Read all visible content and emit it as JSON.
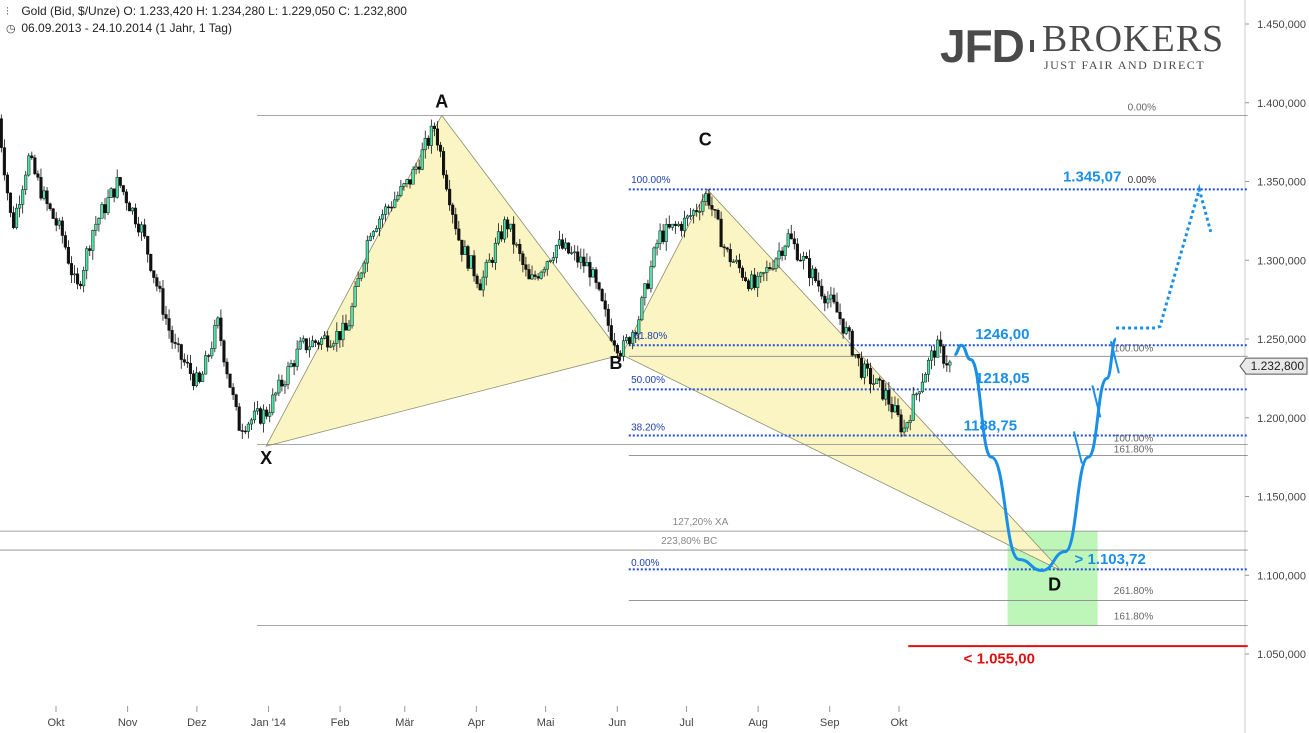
{
  "header": {
    "instrument_line": "Gold (Bid, $/Unze)  O: 1.233,420  H: 1.234,280  L: 1.229,050  C: 1.232,800",
    "range_line": "06.09.2013 - 24.10.2014 (1 Jahr, 1 Tag)"
  },
  "logo": {
    "jfd": "JFD",
    "brokers": "BROKERS",
    "slogan": "JUST FAIR AND DIRECT"
  },
  "chart_data": {
    "type": "candlestick",
    "instrument": "Gold (Bid, $/Unze)",
    "open": 1233.42,
    "high": 1234.28,
    "low": 1229.05,
    "close": 1232.8,
    "period": "06.09.2013 - 24.10.2014 (1 Jahr, 1 Tag)",
    "ylim": [
      1050,
      1450
    ],
    "y_ticks": [
      {
        "v": 1450,
        "label": "1.450,000"
      },
      {
        "v": 1400,
        "label": "1.400,000"
      },
      {
        "v": 1350,
        "label": "1.350,000"
      },
      {
        "v": 1300,
        "label": "1.300,000"
      },
      {
        "v": 1250,
        "label": "1.250,000"
      },
      {
        "v": 1200,
        "label": "1.200,000"
      },
      {
        "v": 1150,
        "label": "1.150,000"
      },
      {
        "v": 1100,
        "label": "1.100,000"
      },
      {
        "v": 1050,
        "label": "1.050,000"
      }
    ],
    "x_ticks": [
      {
        "date": "2013-10-01",
        "label": "Okt"
      },
      {
        "date": "2013-11-01",
        "label": "Nov"
      },
      {
        "date": "2013-12-01",
        "label": "Dez"
      },
      {
        "date": "2014-01-01",
        "label": "Jan '14"
      },
      {
        "date": "2014-02-01",
        "label": "Feb"
      },
      {
        "date": "2014-03-01",
        "label": "Mär"
      },
      {
        "date": "2014-04-01",
        "label": "Apr"
      },
      {
        "date": "2014-05-01",
        "label": "Mai"
      },
      {
        "date": "2014-06-01",
        "label": "Jun"
      },
      {
        "date": "2014-07-01",
        "label": "Jul"
      },
      {
        "date": "2014-08-01",
        "label": "Aug"
      },
      {
        "date": "2014-09-01",
        "label": "Sep"
      },
      {
        "date": "2014-10-01",
        "label": "Okt"
      }
    ],
    "last_price_label": "1.232,800",
    "last_price": 1232.8,
    "price_path": [
      {
        "date": "2013-09-06",
        "v": 1390
      },
      {
        "date": "2013-09-12",
        "v": 1320
      },
      {
        "date": "2013-09-19",
        "v": 1365
      },
      {
        "date": "2013-09-27",
        "v": 1335
      },
      {
        "date": "2013-10-04",
        "v": 1315
      },
      {
        "date": "2013-10-10",
        "v": 1280
      },
      {
        "date": "2013-10-17",
        "v": 1320
      },
      {
        "date": "2013-10-28",
        "v": 1350
      },
      {
        "date": "2013-11-07",
        "v": 1320
      },
      {
        "date": "2013-11-21",
        "v": 1245
      },
      {
        "date": "2013-12-02",
        "v": 1220
      },
      {
        "date": "2013-12-10",
        "v": 1260
      },
      {
        "date": "2013-12-19",
        "v": 1195
      },
      {
        "date": "2013-12-31",
        "v": 1203
      },
      {
        "date": "2014-01-15",
        "v": 1245
      },
      {
        "date": "2014-02-04",
        "v": 1255
      },
      {
        "date": "2014-02-14",
        "v": 1320
      },
      {
        "date": "2014-03-03",
        "v": 1350
      },
      {
        "date": "2014-03-14",
        "v": 1385
      },
      {
        "date": "2014-03-25",
        "v": 1310
      },
      {
        "date": "2014-04-03",
        "v": 1285
      },
      {
        "date": "2014-04-14",
        "v": 1325
      },
      {
        "date": "2014-04-24",
        "v": 1285
      },
      {
        "date": "2014-05-06",
        "v": 1310
      },
      {
        "date": "2014-05-20",
        "v": 1295
      },
      {
        "date": "2014-05-29",
        "v": 1255
      },
      {
        "date": "2014-06-03",
        "v": 1242
      },
      {
        "date": "2014-06-10",
        "v": 1262
      },
      {
        "date": "2014-06-19",
        "v": 1315
      },
      {
        "date": "2014-07-01",
        "v": 1325
      },
      {
        "date": "2014-07-10",
        "v": 1342
      },
      {
        "date": "2014-07-18",
        "v": 1305
      },
      {
        "date": "2014-07-31",
        "v": 1282
      },
      {
        "date": "2014-08-14",
        "v": 1315
      },
      {
        "date": "2014-08-27",
        "v": 1285
      },
      {
        "date": "2014-09-05",
        "v": 1265
      },
      {
        "date": "2014-09-15",
        "v": 1230
      },
      {
        "date": "2014-09-25",
        "v": 1215
      },
      {
        "date": "2014-10-03",
        "v": 1192
      },
      {
        "date": "2014-10-10",
        "v": 1222
      },
      {
        "date": "2014-10-17",
        "v": 1245
      },
      {
        "date": "2014-10-24",
        "v": 1232
      }
    ],
    "pattern": {
      "points": [
        {
          "label": "X",
          "date": "2013-12-31",
          "v": 1182
        },
        {
          "label": "A",
          "date": "2014-03-17",
          "v": 1392
        },
        {
          "label": "B",
          "date": "2014-06-03",
          "v": 1240
        },
        {
          "label": "C",
          "date": "2014-07-10",
          "v": 1345
        },
        {
          "label": "D",
          "date": "2014-12-10",
          "v": 1103
        }
      ],
      "fill_color": "#fbf5c3"
    },
    "levels": [
      {
        "v": 1392,
        "x_from": "2013-12-27",
        "x_to": "2015-03-01",
        "style": "solid",
        "color": "#888888"
      },
      {
        "v": 1345,
        "x_from": "2014-06-06",
        "x_to": "2015-03-01",
        "style": "dotted",
        "color": "#1d4fd8"
      },
      {
        "v": 1246,
        "x_from": "2014-06-06",
        "x_to": "2015-03-01",
        "style": "dotted",
        "color": "#1d4fd8"
      },
      {
        "v": 1239,
        "x_from": "2014-06-06",
        "x_to": "2015-03-01",
        "style": "solid",
        "color": "#888888"
      },
      {
        "v": 1218.05,
        "x_from": "2014-06-06",
        "x_to": "2015-03-01",
        "style": "dotted",
        "color": "#1d4fd8"
      },
      {
        "v": 1188.75,
        "x_from": "2014-06-06",
        "x_to": "2015-03-01",
        "style": "dotted",
        "color": "#1d4fd8"
      },
      {
        "v": 1183,
        "x_from": "2013-12-27",
        "x_to": "2015-03-01",
        "style": "solid",
        "color": "#888888"
      },
      {
        "v": 1176,
        "x_from": "2014-06-06",
        "x_to": "2015-03-01",
        "style": "solid",
        "color": "#888888"
      },
      {
        "v": 1128,
        "x_from": "2013-09-06",
        "x_to": "2015-03-01",
        "style": "solid",
        "color": "#888888"
      },
      {
        "v": 1116,
        "x_from": "2013-09-06",
        "x_to": "2015-03-01",
        "style": "solid",
        "color": "#888888"
      },
      {
        "v": 1103.72,
        "x_from": "2014-06-06",
        "x_to": "2015-03-01",
        "style": "dotted",
        "color": "#1d4fd8"
      },
      {
        "v": 1084,
        "x_from": "2014-06-06",
        "x_to": "2015-03-01",
        "style": "solid",
        "color": "#888888"
      },
      {
        "v": 1068,
        "x_from": "2013-12-27",
        "x_to": "2015-03-01",
        "style": "solid",
        "color": "#888888"
      },
      {
        "v": 1055,
        "x_from": "2014-10-05",
        "x_to": "2015-03-01",
        "style": "solid",
        "color": "#e01010"
      }
    ],
    "fib_labels": [
      {
        "text": "0.00%",
        "date": "2015-01-08",
        "v": 1395,
        "color": "#666666"
      },
      {
        "text": "100.00%",
        "date": "2014-06-07",
        "v": 1349,
        "color": "#1d3fb0"
      },
      {
        "text": "0.00%",
        "date": "2015-01-08",
        "v": 1349,
        "color": "#333333"
      },
      {
        "text": "61.80%",
        "date": "2014-06-08",
        "v": 1250,
        "color": "#1d3fb0"
      },
      {
        "text": "100.00%",
        "date": "2015-01-02",
        "v": 1242,
        "color": "#666666"
      },
      {
        "text": "50.00%",
        "date": "2014-06-07",
        "v": 1222,
        "color": "#1d3fb0"
      },
      {
        "text": "38.20%",
        "date": "2014-06-07",
        "v": 1192,
        "color": "#1d3fb0"
      },
      {
        "text": "100.00%",
        "date": "2015-01-02",
        "v": 1185,
        "color": "#666666"
      },
      {
        "text": "161.80%",
        "date": "2015-01-02",
        "v": 1178,
        "color": "#666666"
      },
      {
        "text": "127,20% XA",
        "date": "2014-06-25",
        "v": 1132,
        "color": "#888888"
      },
      {
        "text": "223,80% BC",
        "date": "2014-06-20",
        "v": 1120,
        "color": "#888888"
      },
      {
        "text": "0.00%",
        "date": "2014-06-07",
        "v": 1106,
        "color": "#1d3fb0"
      },
      {
        "text": "261.80%",
        "date": "2015-01-02",
        "v": 1088,
        "color": "#666666"
      },
      {
        "text": "161.80%",
        "date": "2015-01-02",
        "v": 1072,
        "color": "#666666"
      }
    ],
    "targets": [
      {
        "text": "1.345,07",
        "date": "2014-12-11",
        "v": 1350,
        "color": "#1a8fe8"
      },
      {
        "text": "1246,00",
        "date": "2014-11-03",
        "v": 1250,
        "color": "#1a8fe8"
      },
      {
        "text": "1218,05",
        "date": "2014-11-03",
        "v": 1222,
        "color": "#1a8fe8"
      },
      {
        "text": "1188,75",
        "date": "2014-10-29",
        "v": 1192,
        "color": "#1a8fe8"
      },
      {
        "text": "> 1.103,72",
        "date": "2014-12-16",
        "v": 1107,
        "color": "#1a8fe8"
      },
      {
        "text": "< 1.055,00",
        "date": "2014-10-29",
        "v": 1044,
        "color": "#e01010"
      }
    ],
    "projection": [
      {
        "date": "2014-10-25",
        "v": 1240
      },
      {
        "date": "2014-10-28",
        "v": 1246
      },
      {
        "date": "2014-11-01",
        "v": 1237
      },
      {
        "date": "2014-11-10",
        "v": 1175
      },
      {
        "date": "2014-11-22",
        "v": 1110
      },
      {
        "date": "2014-12-02",
        "v": 1103
      },
      {
        "date": "2014-12-12",
        "v": 1115
      },
      {
        "date": "2014-12-22",
        "v": 1175
      },
      {
        "date": "2014-12-30",
        "v": 1225
      },
      {
        "date": "2015-01-03",
        "v": 1250
      }
    ],
    "projection_color": "#1a8fe8",
    "projection_dotted": [
      {
        "date": "2015-01-03",
        "v": 1257
      },
      {
        "date": "2015-01-20",
        "v": 1257
      },
      {
        "date": "2015-01-22",
        "v": 1258
      },
      {
        "date": "2015-02-08",
        "v": 1345
      },
      {
        "date": "2015-02-13",
        "v": 1318
      }
    ],
    "target_zone": {
      "from": "2014-11-17",
      "to": "2014-12-26",
      "low": 1068,
      "high": 1128,
      "color": "#b6f5b0"
    }
  }
}
